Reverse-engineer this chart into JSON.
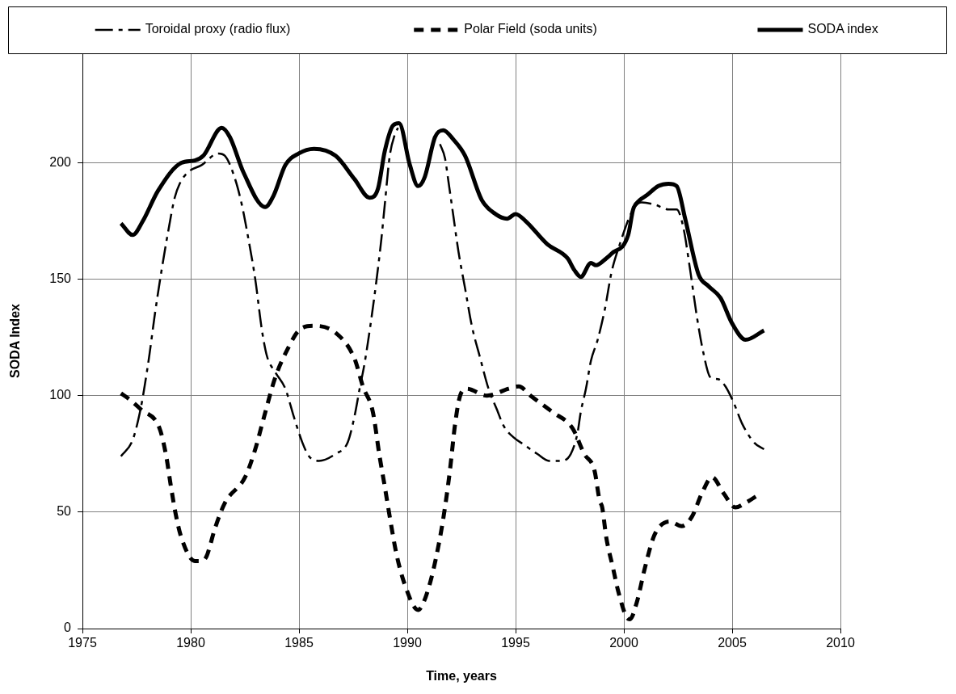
{
  "chart_data": {
    "type": "line",
    "xlabel": "Time, years",
    "ylabel": "SODA Index",
    "xlim": [
      1975,
      2010
    ],
    "xticks": [
      1975,
      1980,
      1985,
      1990,
      1995,
      2000,
      2005,
      2010
    ],
    "ylim": [
      0,
      247
    ],
    "yticks": [
      0,
      50,
      100,
      150,
      200
    ],
    "grid": true,
    "legend": "top",
    "series": [
      {
        "name": "Toroidal proxy (radio flux)",
        "color": "#000000",
        "line_style": "dashdot",
        "x": [
          1976.78,
          1977.32,
          1977.68,
          1977.87,
          1978.1,
          1978.33,
          1978.64,
          1978.95,
          1979.26,
          1979.49,
          1979.88,
          1980.5,
          1981.27,
          1981.58,
          1982.05,
          1982.36,
          1982.67,
          1982.98,
          1983.29,
          1983.52,
          1983.91,
          1984.37,
          1984.76,
          1985.15,
          1985.46,
          1985.92,
          1986.69,
          1987.25,
          1987.56,
          1987.8,
          1988.03,
          1988.34,
          1988.57,
          1988.8,
          1988.96,
          1989.19,
          1989.42,
          1989.57,
          1990.5,
          1991.51,
          1991.74,
          1991.9,
          1992.13,
          1992.36,
          1992.67,
          1992.98,
          1993.37,
          1993.75,
          1994.14,
          1994.45,
          1994.92,
          1995.38,
          1996.0,
          1996.54,
          1997.09,
          1997.55,
          1997.86,
          1998.01,
          1998.25,
          1998.48,
          1998.79,
          1999.12,
          1999.43,
          1999.74,
          2000.43,
          2000.82,
          2001.44,
          2002.06,
          2002.44,
          2002.75,
          2003.06,
          2003.37,
          2003.68,
          2003.99,
          2004.38,
          2004.69,
          2005.07,
          2005.46,
          2006.0,
          2006.47
        ],
        "values": [
          74,
          81,
          94,
          104,
          118,
          134,
          153,
          170,
          185,
          191,
          196,
          199,
          204,
          203,
          193,
          182,
          167,
          150,
          128,
          117,
          110,
          103,
          91,
          80,
          74,
          72,
          75,
          80,
          91,
          103,
          114,
          133,
          149,
          167,
          182,
          203,
          212,
          215,
          null,
          208,
          202,
          192,
          177,
          162,
          146,
          130,
          116,
          103,
          94,
          87,
          82,
          79,
          75,
          72,
          72,
          75,
          84,
          93,
          103,
          115,
          124,
          137,
          153,
          163,
          180,
          183,
          182,
          180,
          180,
          172,
          154,
          134,
          118,
          108,
          107,
          104,
          97,
          88,
          80,
          77
        ]
      },
      {
        "name": "Polar Field (soda units)",
        "color": "#000000",
        "line_style": "dashed",
        "x": [
          1976.78,
          1977.09,
          1977.71,
          1978.56,
          1978.87,
          1979.07,
          1979.31,
          1979.57,
          1980.19,
          1980.5,
          1980.73,
          1981.12,
          1981.58,
          1982.51,
          1982.98,
          1983.36,
          1983.91,
          1984.53,
          1984.99,
          1985.69,
          1986.69,
          1987.56,
          1987.95,
          1988.41,
          1988.72,
          1988.96,
          1989.19,
          1989.5,
          1989.88,
          1990.5,
          1990.74,
          1991.12,
          1991.51,
          1991.74,
          1991.97,
          1992.21,
          1992.44,
          1992.75,
          1993.68,
          1994.68,
          1995.15,
          1995.69,
          1996.7,
          1997.63,
          1998.17,
          1998.64,
          1998.88,
          1999.0,
          1999.19,
          1999.5,
          1999.74,
          2000.12,
          2000.28,
          2000.59,
          2000.97,
          2001.36,
          2001.67,
          2002.13,
          2002.67,
          2003.14,
          2003.6,
          2004.07,
          2004.61,
          2005.15,
          2005.62,
          2006.31
        ],
        "values": [
          101,
          99,
          94,
          86,
          74,
          62,
          49,
          39,
          29,
          29,
          31,
          43,
          54,
          65,
          77,
          90,
          108,
          121,
          128,
          130,
          127,
          116,
          104,
          93,
          74,
          61,
          48,
          32,
          19,
          8,
          11,
          22,
          39,
          52,
          68,
          88,
          100,
          103,
          100,
          103,
          104,
          100,
          93,
          86,
          75,
          68,
          55,
          52,
          39,
          26,
          16,
          5,
          4,
          11,
          26,
          39,
          44,
          46,
          44,
          48,
          58,
          65,
          58,
          52,
          54,
          58
        ]
      },
      {
        "name": "SODA index",
        "color": "#000000",
        "line_style": "solid",
        "x": [
          1976.78,
          1977.32,
          1977.79,
          1978.49,
          1979.57,
          1980.19,
          1980.58,
          1981.43,
          1981.81,
          1982.43,
          1983.44,
          1983.83,
          1984.37,
          1984.99,
          1985.69,
          1986.69,
          1987.56,
          1988.26,
          1988.65,
          1988.96,
          1989.34,
          1989.62,
          1990.12,
          1990.5,
          1990.81,
          1991.28,
          1991.66,
          1992.13,
          1992.67,
          1993.44,
          1994.07,
          1994.61,
          1995.0,
          1995.46,
          1996.47,
          1997.4,
          1997.71,
          1998.01,
          1998.48,
          1998.71,
          1999.19,
          1999.43,
          2000.2,
          2000.43,
          2000.74,
          2001.05,
          2001.59,
          2002.06,
          2002.44,
          2002.83,
          2003.45,
          2003.91,
          2004.46,
          2005.0,
          2005.62,
          2006.47
        ],
        "values": [
          174,
          169,
          175,
          188,
          200,
          201,
          203,
          215,
          211,
          196,
          181,
          186,
          199,
          204,
          206,
          203,
          193,
          185,
          189,
          205,
          216,
          217,
          199,
          190,
          194,
          211,
          214,
          210,
          203,
          184,
          178,
          176,
          178,
          175,
          165,
          159,
          154,
          151,
          157,
          156,
          159,
          161,
          169,
          180,
          184,
          186,
          190,
          191,
          190,
          176,
          152,
          147,
          142,
          131,
          124,
          128
        ]
      }
    ]
  }
}
